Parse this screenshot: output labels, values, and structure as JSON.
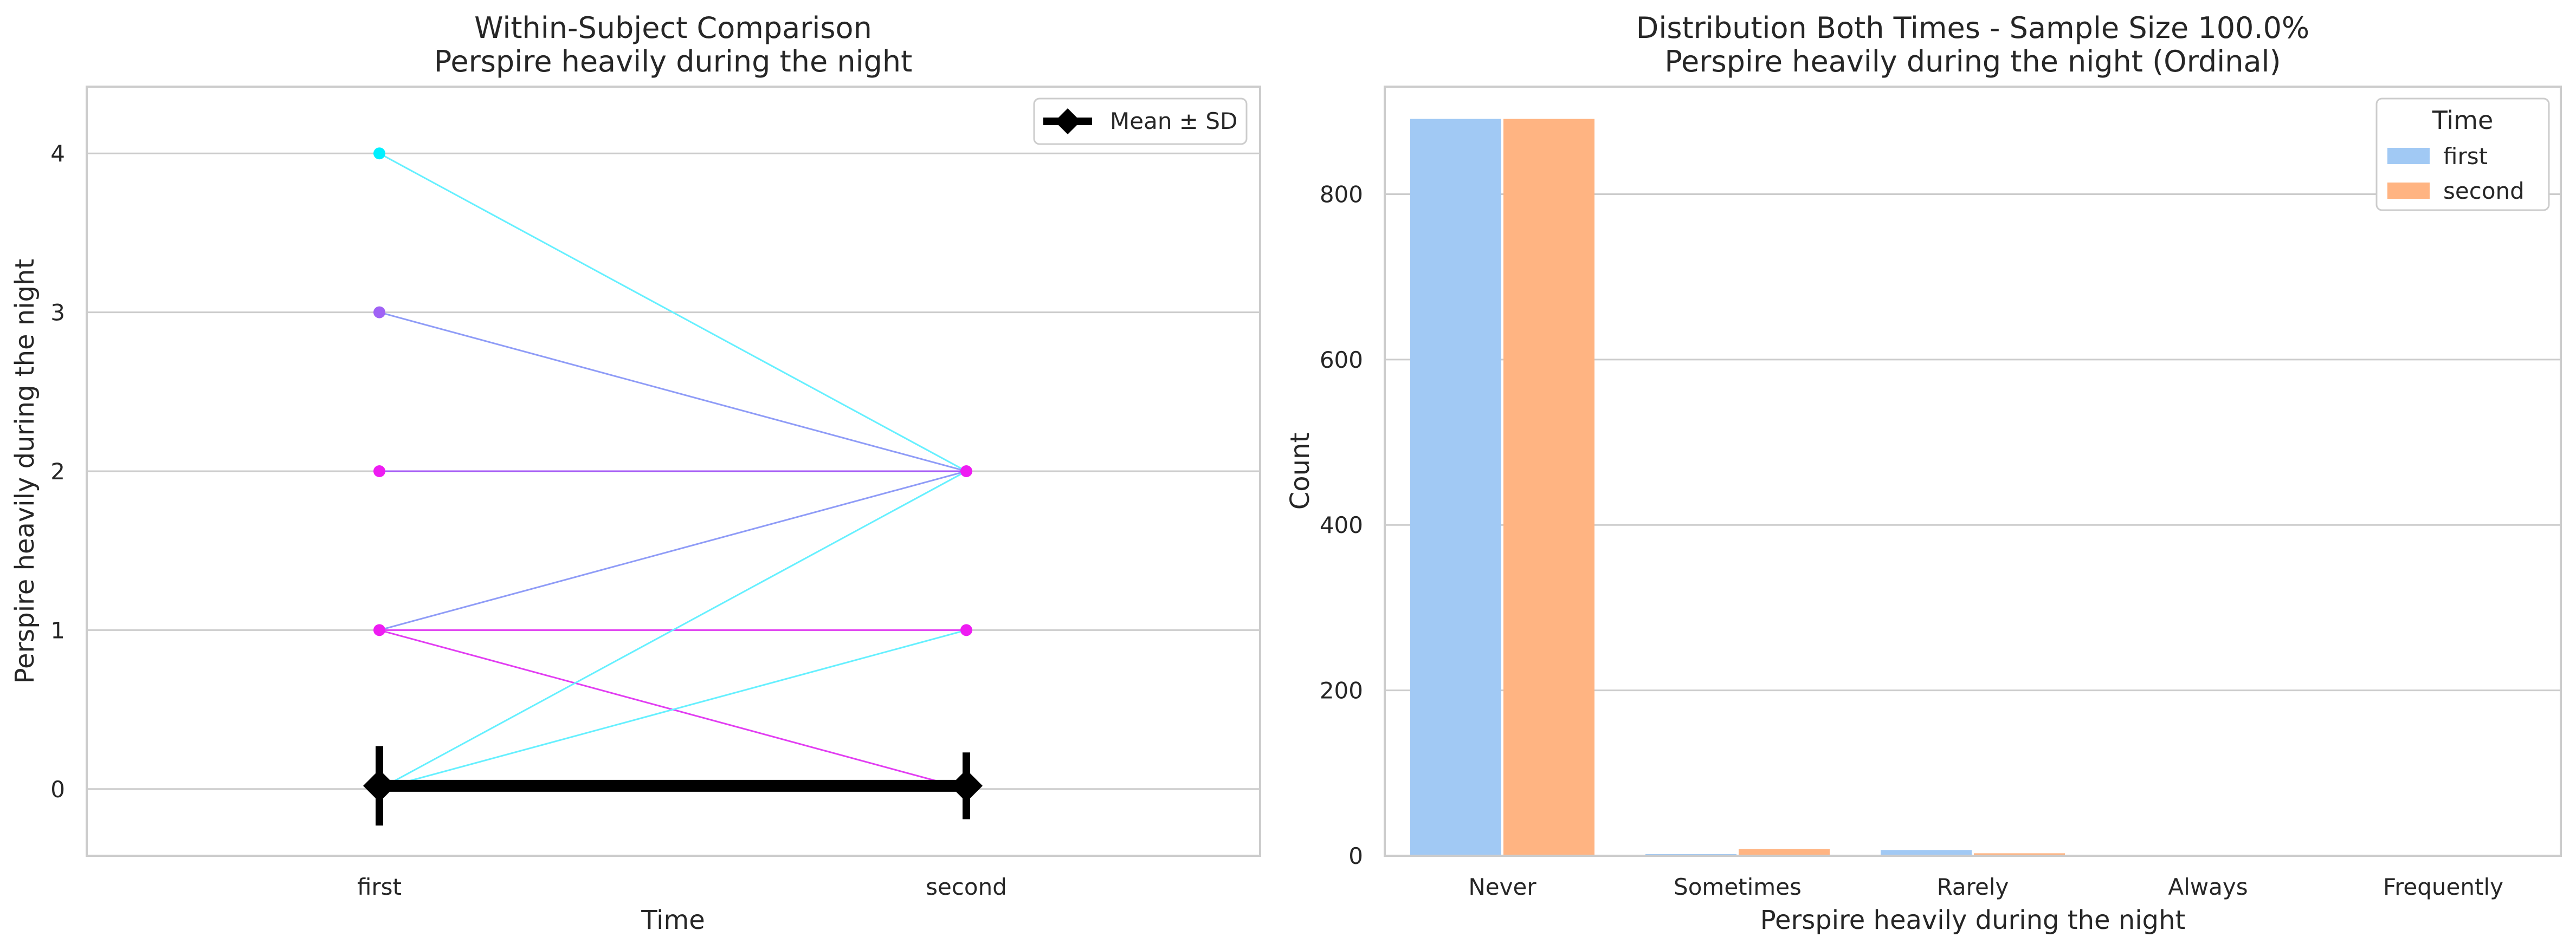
{
  "chart_data": [
    {
      "type": "line",
      "title": "Within-Subject Comparison\nPerspire heavily during the night",
      "xlabel": "Time",
      "ylabel": "Perspire heavily during the night",
      "x_categories": [
        "first",
        "second"
      ],
      "ylim": [
        -0.42,
        4.42
      ],
      "yticks": [
        0,
        1,
        2,
        3,
        4
      ],
      "grid": "horizontal",
      "legend": {
        "placement": "top-right",
        "entries": [
          "Mean ± SD"
        ]
      },
      "subject_lines": [
        {
          "first": 4,
          "second": 2,
          "color": "#66f0ff"
        },
        {
          "first": 3,
          "second": 2,
          "color": "#8f9cf7"
        },
        {
          "first": 2,
          "second": 2,
          "color": "#a45af5"
        },
        {
          "first": 1,
          "second": 2,
          "color": "#8f9cf7"
        },
        {
          "first": 1,
          "second": 1,
          "color": "#e23ef2"
        },
        {
          "first": 1,
          "second": 0,
          "color": "#e23ef2"
        },
        {
          "first": 0,
          "second": 2,
          "color": "#66f0ff"
        },
        {
          "first": 0,
          "second": 1,
          "color": "#66f0ff"
        }
      ],
      "points": [
        {
          "x": "first",
          "y": 4,
          "color": "#00f0ff"
        },
        {
          "x": "first",
          "y": 3,
          "color": "#a062f5"
        },
        {
          "x": "first",
          "y": 2,
          "color": "#ee1cf2"
        },
        {
          "x": "first",
          "y": 1,
          "color": "#ee1cf2"
        },
        {
          "x": "second",
          "y": 2,
          "color": "#ee1cf2"
        },
        {
          "x": "second",
          "y": 1,
          "color": "#ee1cf2"
        }
      ],
      "mean_sd": [
        {
          "x": "first",
          "mean": 0.02,
          "sd": 0.25
        },
        {
          "x": "second",
          "mean": 0.02,
          "sd": 0.21
        }
      ]
    },
    {
      "type": "bar",
      "title": "Distribution Both Times - Sample Size 100.0%\nPerspire heavily during the night (Ordinal)",
      "xlabel": "Perspire heavily during the night",
      "ylabel": "Count",
      "categories": [
        "Never",
        "Sometimes",
        "Rarely",
        "Always",
        "Frequently"
      ],
      "ylim": [
        0,
        930
      ],
      "yticks": [
        0,
        200,
        400,
        600,
        800
      ],
      "grid": "horizontal",
      "legend": {
        "placement": "top-right",
        "title": "Time"
      },
      "series": [
        {
          "name": "first",
          "color": "#a1c9f4",
          "values": [
            891,
            2,
            7,
            0,
            0
          ]
        },
        {
          "name": "second",
          "color": "#ffb482",
          "values": [
            891,
            8,
            3,
            0,
            0
          ]
        }
      ]
    }
  ]
}
